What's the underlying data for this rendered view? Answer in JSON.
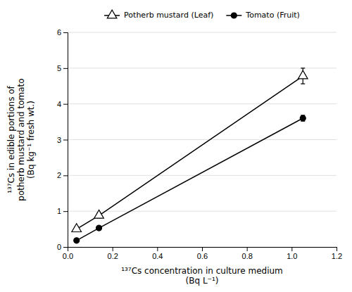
{
  "chart_data": {
    "type": "line",
    "xlabel": [
      "¹³⁷Cs concentration in culture medium",
      "(Bq L⁻¹)"
    ],
    "ylabel": [
      "¹³⁷Cs in edible portions of",
      "potherb mustard and tomato",
      "(Bq kg⁻¹ fresh wt.)"
    ],
    "x": [
      0.04,
      0.14,
      1.05
    ],
    "series": [
      {
        "name": "Potherb mustard (Leaf)",
        "color": "#000000",
        "marker": "triangle-open",
        "line_style": "solid",
        "values": [
          0.5,
          0.88,
          4.78
        ],
        "errors": [
          0.07,
          0.07,
          0.22
        ]
      },
      {
        "name": "Tomato (Fruit)",
        "color": "#000000",
        "marker": "circle",
        "line_style": "solid",
        "values": [
          0.18,
          0.53,
          3.6
        ],
        "errors": [
          0.03,
          0.05,
          0.08
        ]
      }
    ],
    "xlim": [
      0,
      1.2
    ],
    "ylim": [
      0,
      6
    ],
    "xticks": [
      {
        "value": 0,
        "label": "0.0"
      },
      0.2,
      0.4,
      0.6,
      0.8,
      {
        "value": 1,
        "label": "1.0"
      },
      1.2
    ],
    "yticks": [
      0,
      1,
      2,
      3,
      4,
      5,
      6
    ],
    "grid": "y",
    "legend": "top"
  }
}
